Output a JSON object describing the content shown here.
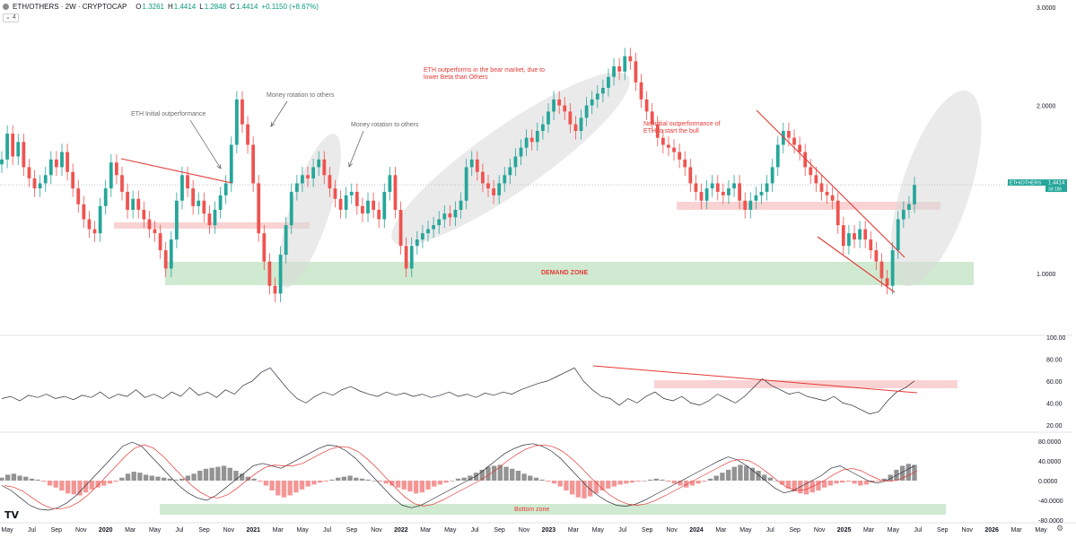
{
  "header": {
    "symbol": "ETH/OTHERS · 2W · CRYPTOCAP",
    "o_label": "O",
    "o_value": "1.3261",
    "h_label": "H",
    "h_value": "1.4414",
    "l_label": "L",
    "l_value": "1.2848",
    "c_label": "C",
    "c_value": "1.4414",
    "change": "+0.1150 (+8.67%)",
    "indicator_toggle": "4"
  },
  "colors": {
    "up": "#26a69a",
    "down": "#ef5350",
    "demand_zone": "#c8e6c9",
    "resistance_zone": "#f8c8c8",
    "ellipse": "#d9d9d9",
    "trendline": "#e53935",
    "annotation_red": "#e53935",
    "annotation_gray": "#6b6b6b"
  },
  "chart_data": [
    {
      "type": "candlestick",
      "name": "ETH/OTHERS",
      "yscale": "log",
      "ylim": [
        0.78,
        3.0
      ],
      "y_ticks": [
        "1.0000",
        "2.0000",
        "3.0000"
      ],
      "x_ticks": [
        "May",
        "Jul",
        "Sep",
        "Nov",
        "2020",
        "Mar",
        "May",
        "Jul",
        "Sep",
        "Nov",
        "2021",
        "Mar",
        "May",
        "Jul",
        "Sep",
        "Nov",
        "2022",
        "Mar",
        "May",
        "Jul",
        "Sep",
        "Nov",
        "2023",
        "Mar",
        "May",
        "Jul",
        "Sep",
        "Nov",
        "2024",
        "Mar",
        "May",
        "Jul",
        "Sep",
        "Nov",
        "2025",
        "Mar",
        "May",
        "Jul",
        "Sep",
        "Nov",
        "2026",
        "Mar",
        "May"
      ],
      "x_range": [
        "2019-05",
        "2026-05"
      ],
      "last_price": {
        "symbol_label": "ETH/OTHERS",
        "price": "1.4414",
        "countdown": "3d 18h"
      },
      "closes": [
        1.6,
        1.78,
        1.62,
        1.72,
        1.55,
        1.48,
        1.42,
        1.45,
        1.5,
        1.6,
        1.55,
        1.65,
        1.52,
        1.42,
        1.33,
        1.25,
        1.2,
        1.18,
        1.32,
        1.42,
        1.58,
        1.5,
        1.4,
        1.3,
        1.36,
        1.3,
        1.25,
        1.2,
        1.18,
        1.1,
        1.02,
        1.15,
        1.35,
        1.5,
        1.42,
        1.32,
        1.35,
        1.28,
        1.22,
        1.3,
        1.38,
        1.45,
        1.7,
        2.05,
        1.85,
        1.7,
        1.45,
        1.18,
        1.05,
        0.95,
        0.92,
        1.08,
        1.22,
        1.4,
        1.45,
        1.5,
        1.48,
        1.55,
        1.6,
        1.5,
        1.42,
        1.36,
        1.3,
        1.38,
        1.4,
        1.32,
        1.28,
        1.35,
        1.3,
        1.25,
        1.4,
        1.5,
        1.3,
        1.12,
        1.02,
        1.12,
        1.15,
        1.18,
        1.2,
        1.22,
        1.25,
        1.28,
        1.26,
        1.3,
        1.35,
        1.55,
        1.6,
        1.52,
        1.45,
        1.42,
        1.38,
        1.45,
        1.5,
        1.55,
        1.62,
        1.68,
        1.75,
        1.72,
        1.8,
        1.85,
        1.95,
        2.05,
        2.0,
        1.95,
        1.85,
        1.8,
        1.9,
        2.0,
        2.05,
        2.1,
        2.15,
        2.25,
        2.35,
        2.3,
        2.45,
        2.4,
        2.2,
        2.05,
        1.95,
        1.85,
        1.75,
        1.7,
        1.68,
        1.65,
        1.6,
        1.55,
        1.45,
        1.4,
        1.35,
        1.42,
        1.45,
        1.4,
        1.38,
        1.42,
        1.45,
        1.35,
        1.3,
        1.35,
        1.38,
        1.4,
        1.45,
        1.55,
        1.7,
        1.8,
        1.75,
        1.7,
        1.65,
        1.55,
        1.5,
        1.45,
        1.4,
        1.38,
        1.35,
        1.22,
        1.12,
        1.18,
        1.15,
        1.2,
        1.15,
        1.1,
        1.05,
        0.98,
        0.95,
        1.1,
        1.25,
        1.3,
        1.33,
        1.44
      ]
    },
    {
      "type": "line",
      "name": "RSI",
      "ylim": [
        15,
        100
      ],
      "y_ticks": [
        "100.00",
        "80.00",
        "60.00",
        "40.00",
        "20.00"
      ],
      "values": [
        44,
        46,
        42,
        47,
        45,
        48,
        44,
        46,
        43,
        47,
        45,
        50,
        44,
        48,
        46,
        52,
        45,
        48,
        44,
        50,
        46,
        54,
        47,
        50,
        45,
        52,
        48,
        56,
        60,
        68,
        72,
        62,
        52,
        44,
        40,
        46,
        50,
        47,
        52,
        55,
        51,
        48,
        46,
        50,
        47,
        49,
        46,
        48,
        45,
        47,
        50,
        46,
        48,
        45,
        49,
        47,
        50,
        48,
        52,
        55,
        58,
        60,
        64,
        68,
        72,
        60,
        52,
        46,
        44,
        38,
        44,
        40,
        46,
        50,
        44,
        42,
        46,
        40,
        38,
        42,
        48,
        44,
        40,
        46,
        54,
        62,
        56,
        52,
        48,
        50,
        46,
        44,
        42,
        46,
        40,
        38,
        34,
        30,
        32,
        42,
        50,
        54,
        60
      ]
    },
    {
      "type": "bar",
      "name": "MACD",
      "ylim": [
        -80,
        80
      ],
      "y_ticks": [
        "80.0000",
        "40.0000",
        "0.0000",
        "-40.0000",
        "-80.0000"
      ],
      "histogram": [
        6,
        12,
        14,
        10,
        8,
        4,
        2,
        -2,
        -10,
        -14,
        -20,
        -26,
        -28,
        -30,
        -24,
        -18,
        -14,
        -10,
        -6,
        -2,
        6,
        14,
        18,
        16,
        12,
        10,
        8,
        6,
        4,
        2,
        4,
        10,
        14,
        20,
        24,
        26,
        28,
        30,
        26,
        20,
        14,
        8,
        4,
        -2,
        -10,
        -20,
        -30,
        -34,
        -30,
        -24,
        -18,
        -12,
        -8,
        -4,
        -2,
        2,
        6,
        8,
        10,
        6,
        4,
        2,
        0,
        -2,
        -6,
        -10,
        -14,
        -18,
        -22,
        -26,
        -24,
        -18,
        -12,
        -8,
        -4,
        0,
        4,
        6,
        10,
        16,
        22,
        28,
        30,
        32,
        28,
        24,
        20,
        14,
        10,
        6,
        2,
        -2,
        -6,
        -12,
        -20,
        -28,
        -34,
        -36,
        -32,
        -26,
        -20,
        -16,
        -12,
        -8,
        -6,
        -4,
        -2,
        0,
        2,
        4,
        2,
        -2,
        -6,
        -10,
        -14,
        -10,
        -6,
        -2,
        4,
        10,
        16,
        22,
        28,
        32,
        30,
        26,
        20,
        12,
        6,
        0,
        -8,
        -16,
        -22,
        -26,
        -28,
        -24,
        -20,
        -14,
        -10,
        -6,
        -4,
        -2,
        -6,
        -10,
        -8,
        -4,
        -2,
        4,
        12,
        22,
        30,
        34,
        32
      ],
      "macd": [
        -10,
        -20,
        -35,
        -50,
        -58,
        -60,
        -55,
        -45,
        -30,
        -10,
        10,
        30,
        50,
        70,
        78,
        70,
        50,
        30,
        10,
        -10,
        -25,
        -35,
        -40,
        -30,
        -15,
        0,
        15,
        30,
        35,
        30,
        25,
        35,
        45,
        55,
        65,
        72,
        70,
        60,
        45,
        25,
        5,
        -15,
        -35,
        -50,
        -55,
        -50,
        -40,
        -30,
        -20,
        -10,
        0,
        10,
        25,
        40,
        55,
        65,
        72,
        75,
        70,
        60,
        45,
        25,
        5,
        -15,
        -30,
        -42,
        -50,
        -52,
        -48,
        -40,
        -30,
        -20,
        -10,
        0,
        10,
        20,
        30,
        40,
        48,
        42,
        30,
        15,
        0,
        -15,
        -25,
        -20,
        -10,
        0,
        10,
        25,
        30,
        20,
        10,
        0,
        -5,
        0,
        10,
        20,
        30
      ]
    }
  ],
  "annotations": {
    "eth_initial": "ETH Initial outperformance",
    "money_rotation_1": "Money rotation to others",
    "money_rotation_2": "Money rotation to others",
    "bear_market": "ETH outperforms in the bear market, due to lower Beta than Others",
    "no_initial": "No initial outperformance of ETH to start the bull",
    "demand_zone": "DEMAND ZONE",
    "bottom_zone": "Bottom zone"
  },
  "branding": {
    "logo": "TV"
  }
}
